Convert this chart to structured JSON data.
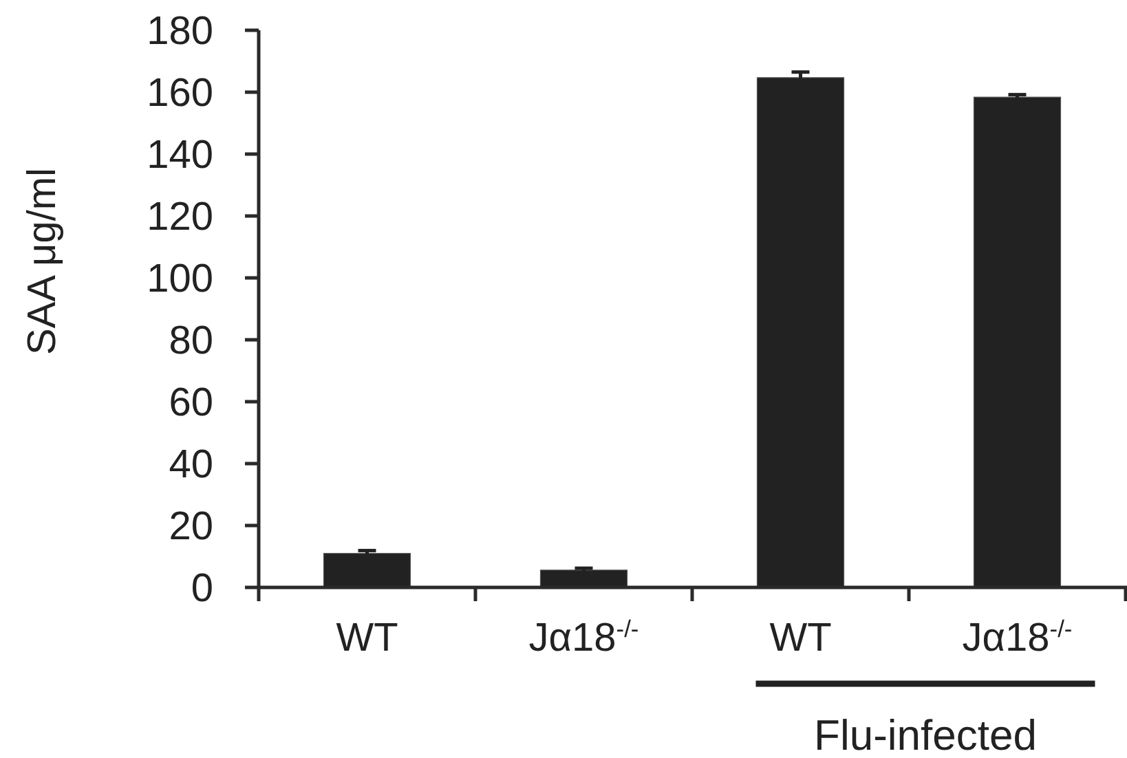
{
  "chart_data": {
    "type": "bar",
    "ylabel": "SAA μg/ml",
    "categories": [
      "WT",
      "Jα18$^{-/-}$",
      "WT",
      "Jα18$^{-/-}$"
    ],
    "values": [
      11,
      5.6,
      164.7,
      158.4
    ],
    "errors": [
      0.9,
      0.6,
      1.8,
      0.8
    ],
    "color": "#222222",
    "ylim": [
      0,
      180
    ],
    "yticks": [
      0,
      20,
      40,
      60,
      80,
      100,
      120,
      140,
      160,
      180
    ],
    "grid": false,
    "annotations": [
      "Flu-infected"
    ]
  }
}
